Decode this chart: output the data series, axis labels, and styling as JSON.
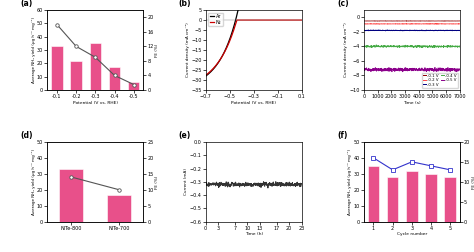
{
  "panel_a": {
    "potentials": [
      -0.1,
      -0.2,
      -0.3,
      -0.4,
      -0.5
    ],
    "nh3_yield": [
      33,
      22,
      35,
      17,
      6
    ],
    "fe": [
      18,
      12,
      9,
      4,
      1.5
    ],
    "bar_color": "#e8508a",
    "line_color": "#555555",
    "xlabel": "Potential (V vs. RHE)",
    "ylabel_left": "Average NH₃ yield (μg h⁻¹ mg⁻¹)",
    "ylabel_right": "FE (%)",
    "ylim_left": [
      0,
      60
    ],
    "ylim_right": [
      0,
      22
    ],
    "yticks_right": [
      0,
      4,
      8,
      12,
      16,
      20
    ],
    "label": "(a)"
  },
  "panel_b": {
    "xlabel": "Potential (V vs. RHE)",
    "ylabel": "Current density (mA cm⁻²)",
    "ylim": [
      -35,
      5
    ],
    "xlim": [
      -0.7,
      0.1
    ],
    "xticks": [
      -0.7,
      -0.5,
      -0.3,
      -0.1,
      0.1
    ],
    "line_color_ar": "#000000",
    "line_color_n2": "#cc0000",
    "legend_labels": [
      "Ar",
      "N₂"
    ],
    "label": "(b)"
  },
  "panel_c": {
    "xlabel": "Time (s)",
    "ylabel": "Current density (mA cm⁻²)",
    "ylim": [
      -10,
      1
    ],
    "xlim": [
      0,
      7000
    ],
    "xticks": [
      0,
      1000,
      2000,
      3000,
      4000,
      5000,
      6000,
      7000
    ],
    "voltages": [
      "-0.1 V",
      "-0.2 V",
      "-0.3 V",
      "-0.4 V",
      "-0.5 V"
    ],
    "colors": [
      "#8B0000",
      "#FF4444",
      "#000080",
      "#44AA44",
      "#8B008B"
    ],
    "i_levels": [
      -0.5,
      -0.9,
      -1.8,
      -4.0,
      -7.2
    ],
    "label": "(c)"
  },
  "panel_d": {
    "categories": [
      "NiTe-800",
      "NiTe-700"
    ],
    "nh3_yield": [
      33,
      17
    ],
    "fe": [
      14,
      10
    ],
    "bar_color": "#e8508a",
    "line_color": "#555555",
    "ylabel_left": "Average NH₃ yield (μg h⁻¹ mg⁻¹)",
    "ylabel_right": "FE (%)",
    "ylim_left": [
      0,
      50
    ],
    "ylim_right": [
      0,
      25
    ],
    "label": "(d)"
  },
  "panel_e": {
    "xlabel": "Time (h)",
    "ylabel": "Current (mA)",
    "ylim": [
      -0.6,
      0.0
    ],
    "xlim": [
      0,
      23
    ],
    "xticks": [
      0,
      3,
      7,
      10,
      13,
      17,
      20,
      23
    ],
    "i_mean": -0.32,
    "label": "(e)"
  },
  "panel_f": {
    "cycles": [
      1,
      2,
      3,
      4,
      5
    ],
    "nh3_yield": [
      35,
      28,
      32,
      30,
      28
    ],
    "fe": [
      16,
      13,
      15,
      14,
      13
    ],
    "bar_color": "#e8508a",
    "line_color": "#3333cc",
    "marker": "s",
    "xlabel": "Cycle number",
    "ylabel_left": "Average NH₃ yield (μg h⁻¹ mg⁻¹)",
    "ylabel_right": "FE (%)",
    "ylim_left": [
      0,
      50
    ],
    "ylim_right": [
      0,
      20
    ],
    "yticks_right": [
      0,
      5,
      10,
      15,
      20
    ],
    "label": "(f)"
  }
}
